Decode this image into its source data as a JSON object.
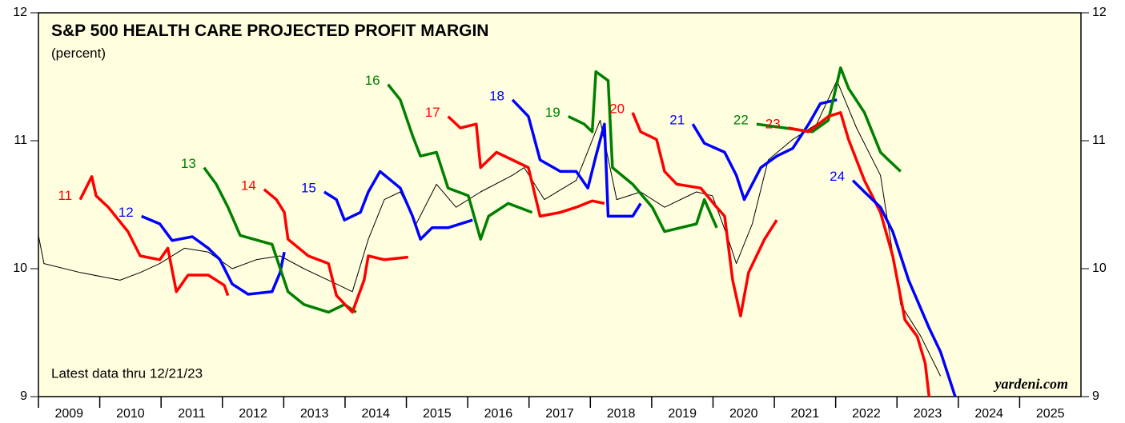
{
  "chart_data": {
    "type": "line",
    "title": "S&P 500 HEALTH CARE PROJECTED PROFIT MARGIN",
    "subtitle": "(percent)",
    "annotations": [
      "Latest data thru 12/21/23",
      "yardeni.com"
    ],
    "xlim": [
      2009,
      2026
    ],
    "xticks": [
      2009,
      2010,
      2011,
      2012,
      2013,
      2014,
      2015,
      2016,
      2017,
      2018,
      2019,
      2020,
      2021,
      2022,
      2023,
      2024,
      2025
    ],
    "ylim": [
      9,
      12
    ],
    "yticks": [
      9,
      10,
      11,
      12
    ],
    "series": [
      {
        "color": "#000000",
        "x": [
          2009,
          2009.09,
          2009.68,
          2010.33,
          2010.66,
          2010.98,
          2011.38,
          2011.77,
          2012.16,
          2012.55,
          2012.94,
          2013.33,
          2013.86,
          2014.12,
          2014.38,
          2014.64,
          2014.9,
          2015.16,
          2015.49,
          2015.81,
          2016.21,
          2016.73,
          2016.92,
          2017.25,
          2017.77,
          2018.16,
          2018.43,
          2018.82,
          2019.21,
          2019.73,
          2019.99,
          2020.25,
          2020.38,
          2020.64,
          2020.9,
          2021.3,
          2021.69,
          2022.02,
          2022.34,
          2022.73,
          2023.06,
          2023.39,
          2023.71
        ],
        "values": [
          10.26,
          10.04,
          9.97,
          9.91,
          9.97,
          10.04,
          10.16,
          10.13,
          10.0,
          10.07,
          10.1,
          10.0,
          9.88,
          9.82,
          10.23,
          10.54,
          10.6,
          10.35,
          10.66,
          10.48,
          10.6,
          10.73,
          10.79,
          10.54,
          10.69,
          11.16,
          10.54,
          10.6,
          10.48,
          10.6,
          10.57,
          10.23,
          10.04,
          10.35,
          10.85,
          11.01,
          11.13,
          11.47,
          11.1,
          10.73,
          9.72,
          9.47,
          9.16
        ]
      },
      {
        "name": "11",
        "color": "#ff0000",
        "x": [
          2009.68,
          2009.87,
          2009.94,
          2010.14,
          2010.46,
          2010.66,
          2010.98,
          2011.11,
          2011.25,
          2011.44,
          2011.77,
          2012.03,
          2012.09
        ],
        "values": [
          10.54,
          10.72,
          10.57,
          10.48,
          10.29,
          10.1,
          10.07,
          10.16,
          9.82,
          9.95,
          9.95,
          9.87,
          9.79
        ]
      },
      {
        "name": "12",
        "color": "#0000ff",
        "x": [
          2010.68,
          2010.98,
          2011.18,
          2011.51,
          2011.77,
          2011.96,
          2012.16,
          2012.42,
          2012.81,
          2012.94,
          2013.01
        ],
        "values": [
          10.41,
          10.35,
          10.22,
          10.25,
          10.16,
          10.07,
          9.88,
          9.8,
          9.82,
          9.97,
          10.13
        ]
      },
      {
        "name": "13",
        "color": "#008000",
        "x": [
          2011.7,
          2011.9,
          2012.09,
          2012.29,
          2012.81,
          2013.07,
          2013.33,
          2013.73,
          2013.99,
          2014.18
        ],
        "values": [
          10.79,
          10.66,
          10.48,
          10.26,
          10.19,
          9.82,
          9.72,
          9.66,
          9.72,
          9.66
        ]
      },
      {
        "name": "14",
        "color": "#ff0000",
        "x": [
          2012.68,
          2012.88,
          2013.01,
          2013.07,
          2013.4,
          2013.73,
          2013.86,
          2014.12,
          2014.31,
          2014.38,
          2014.64,
          2015.03
        ],
        "values": [
          10.62,
          10.54,
          10.44,
          10.23,
          10.1,
          10.04,
          9.79,
          9.66,
          9.91,
          10.1,
          10.07,
          10.09
        ]
      },
      {
        "name": "15",
        "color": "#0000ff",
        "x": [
          2013.66,
          2013.86,
          2013.99,
          2014.25,
          2014.38,
          2014.57,
          2014.9,
          2015.1,
          2015.23,
          2015.42,
          2015.68,
          2016.08
        ],
        "values": [
          10.6,
          10.54,
          10.38,
          10.44,
          10.6,
          10.76,
          10.63,
          10.41,
          10.23,
          10.32,
          10.32,
          10.38
        ]
      },
      {
        "name": "16",
        "color": "#008000",
        "x": [
          2014.7,
          2014.9,
          2015.1,
          2015.23,
          2015.49,
          2015.68,
          2016.01,
          2016.21,
          2016.34,
          2016.66,
          2017.05
        ],
        "values": [
          11.44,
          11.32,
          11.04,
          10.88,
          10.91,
          10.63,
          10.57,
          10.23,
          10.41,
          10.51,
          10.44
        ]
      },
      {
        "name": "17",
        "color": "#ff0000",
        "x": [
          2015.68,
          2015.88,
          2016.14,
          2016.21,
          2016.47,
          2016.73,
          2016.99,
          2017.18,
          2017.51,
          2017.77,
          2018.03,
          2018.23
        ],
        "values": [
          11.19,
          11.1,
          11.13,
          10.79,
          10.91,
          10.85,
          10.79,
          10.41,
          10.44,
          10.48,
          10.53,
          10.51
        ]
      },
      {
        "name": "18",
        "color": "#0000ff",
        "x": [
          2016.73,
          2016.99,
          2017.18,
          2017.51,
          2017.77,
          2017.96,
          2018.09,
          2018.23,
          2018.29,
          2018.69,
          2018.82
        ],
        "values": [
          11.32,
          11.19,
          10.85,
          10.76,
          10.76,
          10.63,
          10.88,
          11.13,
          10.41,
          10.41,
          10.51
        ]
      },
      {
        "name": "19",
        "color": "#008000",
        "x": [
          2017.64,
          2017.9,
          2018.03,
          2018.09,
          2018.29,
          2018.36,
          2018.69,
          2019.01,
          2019.21,
          2019.73,
          2019.86,
          2020.06
        ],
        "values": [
          11.19,
          11.13,
          11.07,
          11.54,
          11.47,
          10.79,
          10.66,
          10.48,
          10.29,
          10.35,
          10.54,
          10.32
        ]
      },
      {
        "name": "20",
        "color": "#ff0000",
        "x": [
          2018.69,
          2018.82,
          2019.08,
          2019.21,
          2019.41,
          2019.8,
          2020.06,
          2020.19,
          2020.32,
          2020.45,
          2020.58,
          2020.84,
          2021.04
        ],
        "values": [
          11.22,
          11.07,
          11.01,
          10.76,
          10.66,
          10.63,
          10.48,
          10.41,
          9.91,
          9.63,
          9.97,
          10.23,
          10.38
        ]
      },
      {
        "name": "21",
        "color": "#0000ff",
        "x": [
          2019.67,
          2019.86,
          2020.19,
          2020.38,
          2020.51,
          2020.78,
          2021.04,
          2021.3,
          2021.56,
          2021.75,
          2022.02
        ],
        "values": [
          11.13,
          10.98,
          10.91,
          10.73,
          10.54,
          10.79,
          10.88,
          10.94,
          11.13,
          11.29,
          11.32
        ]
      },
      {
        "name": "22",
        "color": "#008000",
        "x": [
          2020.71,
          2021.17,
          2021.62,
          2021.88,
          2022.08,
          2022.21,
          2022.47,
          2022.73,
          2022.86,
          2023.06
        ],
        "values": [
          11.13,
          11.1,
          11.07,
          11.16,
          11.57,
          11.41,
          11.22,
          10.91,
          10.85,
          10.76
        ]
      },
      {
        "name": "23",
        "color": "#ff0000",
        "x": [
          2021.23,
          2021.56,
          2021.88,
          2022.08,
          2022.21,
          2022.47,
          2022.73,
          2022.93,
          2023.13,
          2023.33,
          2023.46,
          2023.56
        ],
        "values": [
          11.1,
          11.07,
          11.19,
          11.22,
          11.01,
          10.69,
          10.44,
          10.1,
          9.6,
          9.47,
          9.26,
          8.85
        ]
      },
      {
        "name": "24",
        "color": "#0000ff",
        "x": [
          2022.28,
          2022.47,
          2022.73,
          2022.93,
          2023.19,
          2023.52,
          2023.71,
          2023.84,
          2023.97
        ],
        "values": [
          10.69,
          10.6,
          10.48,
          10.29,
          9.91,
          9.54,
          9.35,
          9.16,
          8.97
        ]
      }
    ]
  }
}
